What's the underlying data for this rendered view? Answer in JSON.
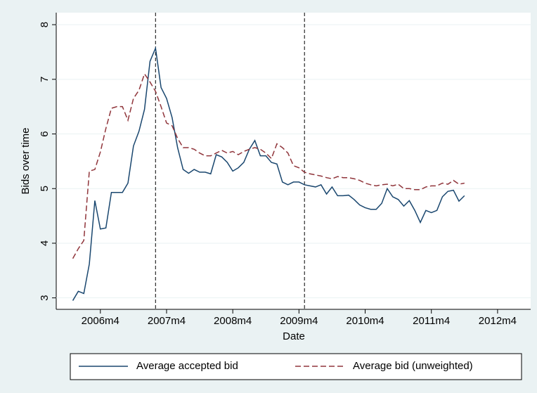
{
  "chart_data": {
    "type": "line",
    "x_label": "Date",
    "y_label": "Bids over time",
    "x": [
      "2005m11",
      "2005m12",
      "2006m1",
      "2006m2",
      "2006m3",
      "2006m4",
      "2006m5",
      "2006m6",
      "2006m7",
      "2006m8",
      "2006m9",
      "2006m10",
      "2006m11",
      "2006m12",
      "2007m1",
      "2007m2",
      "2007m3",
      "2007m4",
      "2007m5",
      "2007m6",
      "2007m7",
      "2007m8",
      "2007m9",
      "2007m10",
      "2007m11",
      "2007m12",
      "2008m1",
      "2008m2",
      "2008m3",
      "2008m4",
      "2008m5",
      "2008m6",
      "2008m7",
      "2008m8",
      "2008m9",
      "2008m10",
      "2008m11",
      "2008m12",
      "2009m1",
      "2009m2",
      "2009m3",
      "2009m4",
      "2009m5",
      "2009m6",
      "2009m7",
      "2009m8",
      "2009m9",
      "2009m10",
      "2009m11",
      "2009m12",
      "2010m1",
      "2010m2",
      "2010m3",
      "2010m4",
      "2010m5",
      "2010m6",
      "2010m7",
      "2010m8",
      "2010m9",
      "2010m10",
      "2010m11",
      "2010m12",
      "2011m1",
      "2011m2",
      "2011m3",
      "2011m4",
      "2011m5",
      "2011m6",
      "2011m7",
      "2011m8",
      "2011m9",
      "2011m10"
    ],
    "series": [
      {
        "name": "Average accepted bid",
        "color": "#1a476f",
        "dash": "solid",
        "values": [
          2.95,
          3.12,
          3.08,
          3.62,
          4.78,
          4.26,
          4.28,
          4.93,
          4.93,
          4.93,
          5.1,
          5.78,
          6.05,
          6.45,
          7.33,
          7.57,
          6.85,
          6.65,
          6.3,
          5.75,
          5.35,
          5.28,
          5.35,
          5.3,
          5.3,
          5.27,
          5.62,
          5.58,
          5.48,
          5.32,
          5.38,
          5.48,
          5.72,
          5.88,
          5.6,
          5.6,
          5.48,
          5.45,
          5.12,
          5.07,
          5.12,
          5.12,
          5.07,
          5.05,
          5.03,
          5.07,
          4.9,
          5.03,
          4.87,
          4.87,
          4.88,
          4.8,
          4.7,
          4.65,
          4.62,
          4.62,
          4.73,
          5.0,
          4.85,
          4.8,
          4.68,
          4.78,
          4.6,
          4.38,
          4.6,
          4.56,
          4.6,
          4.85,
          4.95,
          4.97,
          4.77,
          4.87
        ]
      },
      {
        "name": "Average bid (unweighted)",
        "color": "#90353b",
        "dash": "dashed",
        "values": [
          3.72,
          3.9,
          4.05,
          5.32,
          5.35,
          5.67,
          6.1,
          6.47,
          6.5,
          6.5,
          6.25,
          6.65,
          6.8,
          7.1,
          6.95,
          6.78,
          6.5,
          6.2,
          6.15,
          5.92,
          5.75,
          5.75,
          5.72,
          5.65,
          5.6,
          5.6,
          5.65,
          5.7,
          5.65,
          5.68,
          5.62,
          5.68,
          5.72,
          5.75,
          5.72,
          5.65,
          5.55,
          5.82,
          5.75,
          5.65,
          5.42,
          5.38,
          5.3,
          5.27,
          5.25,
          5.23,
          5.2,
          5.18,
          5.22,
          5.2,
          5.2,
          5.18,
          5.15,
          5.1,
          5.07,
          5.05,
          5.07,
          5.08,
          5.05,
          5.08,
          5.0,
          5.0,
          4.98,
          4.98,
          5.03,
          5.05,
          5.05,
          5.1,
          5.08,
          5.15,
          5.08,
          5.1
        ]
      }
    ],
    "vlines": [
      "2007m2",
      "2009m5"
    ],
    "xlim": [
      "2005m8",
      "2012m10"
    ],
    "xticks": [
      "2006m4",
      "2007m4",
      "2008m4",
      "2009m4",
      "2010m4",
      "2011m4",
      "2012m4"
    ],
    "ylim": [
      2.79,
      8.22
    ],
    "yticks": [
      3,
      4,
      5,
      6,
      7,
      8
    ],
    "grid": true
  }
}
